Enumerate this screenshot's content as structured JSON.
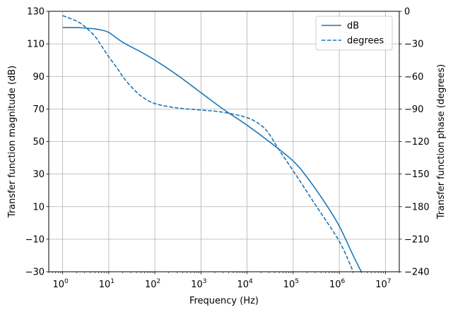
{
  "chart_data": {
    "type": "line",
    "xlabel": "Frequency (Hz)",
    "ylabel_left": "Transfer function magnitude (dB)",
    "ylabel_right": "Transfer function phase (degrees)",
    "x_scale": "log",
    "xlim": [
      0.5,
      20000000
    ],
    "ylim_left": [
      -30,
      130
    ],
    "ylim_right": [
      -240,
      0
    ],
    "grid": true,
    "legend_position": "top-right",
    "x_ticks": [
      {
        "value": 1,
        "label": "0"
      },
      {
        "value": 10,
        "label": "1"
      },
      {
        "value": 100,
        "label": "2"
      },
      {
        "value": 1000,
        "label": "3"
      },
      {
        "value": 10000,
        "label": "4"
      },
      {
        "value": 100000,
        "label": "5"
      },
      {
        "value": 1000000,
        "label": "6"
      },
      {
        "value": 10000000,
        "label": "7"
      }
    ],
    "x_tick_base": "10",
    "y_left_ticks": [
      {
        "value": 130,
        "label": "130"
      },
      {
        "value": 110,
        "label": "110"
      },
      {
        "value": 90,
        "label": "90"
      },
      {
        "value": 70,
        "label": "70"
      },
      {
        "value": 50,
        "label": "50"
      },
      {
        "value": 30,
        "label": "30"
      },
      {
        "value": 10,
        "label": "10"
      },
      {
        "value": -10,
        "label": "−10"
      },
      {
        "value": -30,
        "label": "−30"
      }
    ],
    "y_right_ticks": [
      {
        "value": 0,
        "label": "0"
      },
      {
        "value": -30,
        "label": "−30"
      },
      {
        "value": -60,
        "label": "−60"
      },
      {
        "value": -90,
        "label": "−90"
      },
      {
        "value": -120,
        "label": "−120"
      },
      {
        "value": -150,
        "label": "−150"
      },
      {
        "value": -180,
        "label": "−180"
      },
      {
        "value": -210,
        "label": "−210"
      },
      {
        "value": -240,
        "label": "−240"
      }
    ],
    "series": [
      {
        "name": "dB",
        "axis": "left",
        "style": "solid",
        "color": "#1f77b4",
        "x": [
          1,
          2,
          3,
          5,
          7,
          10,
          20,
          50,
          100,
          300,
          1000,
          3000,
          10000,
          30000,
          100000,
          200000,
          500000,
          1000000,
          2000000,
          3000000
        ],
        "y": [
          120,
          120,
          119.7,
          119.2,
          118.4,
          117,
          111,
          105,
          100,
          91,
          80,
          70,
          60,
          50,
          38,
          28,
          12,
          -2,
          -20,
          -30
        ]
      },
      {
        "name": "degrees",
        "axis": "right",
        "style": "dashed",
        "color": "#1f77b4",
        "x": [
          1,
          2,
          3,
          5,
          7,
          10,
          15,
          20,
          30,
          50,
          100,
          300,
          1000,
          3000,
          10000,
          20000,
          30000,
          50000,
          100000,
          300000,
          1000000,
          2000000
        ],
        "y": [
          -4,
          -9,
          -14,
          -23,
          -32,
          -42,
          -52,
          -60,
          -69,
          -78,
          -85,
          -89,
          -91,
          -93,
          -98,
          -105,
          -113,
          -128,
          -147,
          -178,
          -212,
          -240
        ]
      }
    ]
  }
}
